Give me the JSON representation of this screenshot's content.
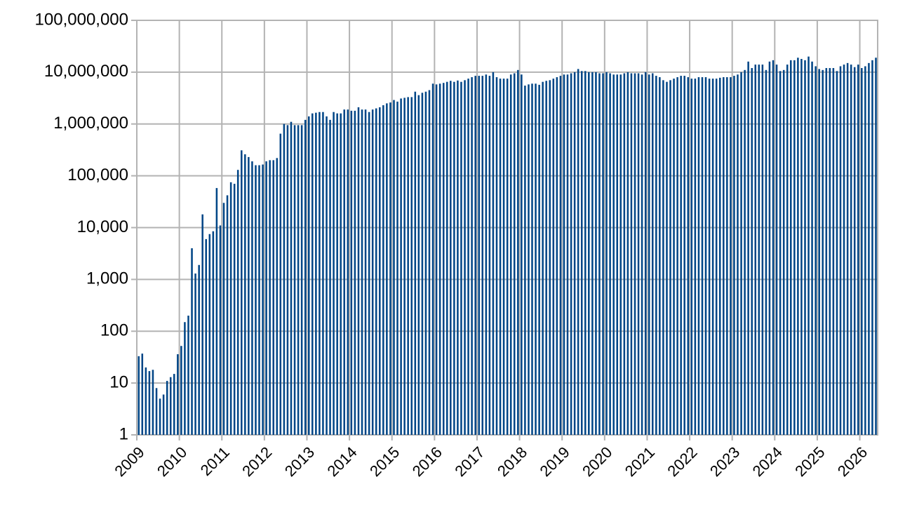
{
  "chart_data": {
    "type": "bar",
    "color": "#004586",
    "log_scale": true,
    "grid": true,
    "xlim": [
      2009,
      2026.42
    ],
    "xticks": [
      2009,
      2010,
      2011,
      2012,
      2013,
      2014,
      2015,
      2016,
      2017,
      2018,
      2019,
      2020,
      2021,
      2022,
      2023,
      2024,
      2025,
      2026
    ],
    "ylim": [
      1,
      100000000
    ],
    "yticks": [
      1,
      10,
      100,
      {
        "value": 1000,
        "label": "1,000"
      },
      {
        "value": 10000,
        "label": "10,000"
      },
      {
        "value": 100000,
        "label": "100,000"
      },
      {
        "value": 1000000,
        "label": "1,000,000"
      },
      {
        "value": 10000000,
        "label": "10,000,000"
      },
      {
        "value": 100000000,
        "label": "100,000,000"
      }
    ],
    "x": [
      2009,
      2009.083,
      2009.167,
      2009.25,
      2009.333,
      2009.417,
      2009.5,
      2009.583,
      2009.667,
      2009.75,
      2009.833,
      2009.917,
      2010,
      2010.083,
      2010.167,
      2010.25,
      2010.333,
      2010.417,
      2010.5,
      2010.583,
      2010.667,
      2010.75,
      2010.833,
      2010.917,
      2011,
      2011.083,
      2011.167,
      2011.25,
      2011.333,
      2011.417,
      2011.5,
      2011.583,
      2011.667,
      2011.75,
      2011.833,
      2011.917,
      2012,
      2012.083,
      2012.167,
      2012.25,
      2012.333,
      2012.417,
      2012.5,
      2012.583,
      2012.667,
      2012.75,
      2012.833,
      2012.917,
      2013,
      2013.083,
      2013.167,
      2013.25,
      2013.333,
      2013.417,
      2013.5,
      2013.583,
      2013.667,
      2013.75,
      2013.833,
      2013.917,
      2014,
      2014.083,
      2014.167,
      2014.25,
      2014.333,
      2014.417,
      2014.5,
      2014.583,
      2014.667,
      2014.75,
      2014.833,
      2014.917,
      2015,
      2015.083,
      2015.167,
      2015.25,
      2015.333,
      2015.417,
      2015.5,
      2015.583,
      2015.667,
      2015.75,
      2015.833,
      2015.917,
      2016,
      2016.083,
      2016.167,
      2016.25,
      2016.333,
      2016.417,
      2016.5,
      2016.583,
      2016.667,
      2016.75,
      2016.833,
      2016.917,
      2017,
      2017.083,
      2017.167,
      2017.25,
      2017.333,
      2017.417,
      2017.5,
      2017.583,
      2017.667,
      2017.75,
      2017.833,
      2017.917,
      2018,
      2018.083,
      2018.167,
      2018.25,
      2018.333,
      2018.417,
      2018.5,
      2018.583,
      2018.667,
      2018.75,
      2018.833,
      2018.917,
      2019,
      2019.083,
      2019.167,
      2019.25,
      2019.333,
      2019.417,
      2019.5,
      2019.583,
      2019.667,
      2019.75,
      2019.833,
      2019.917,
      2020,
      2020.083,
      2020.167,
      2020.25,
      2020.333,
      2020.417,
      2020.5,
      2020.583,
      2020.667,
      2020.75,
      2020.833,
      2020.917,
      2021,
      2021.083,
      2021.167,
      2021.25,
      2021.333,
      2021.417,
      2021.5,
      2021.583,
      2021.667,
      2021.75,
      2021.833,
      2021.917,
      2022,
      2022.083,
      2022.167,
      2022.25,
      2022.333,
      2022.417,
      2022.5,
      2022.583,
      2022.667,
      2022.75,
      2022.833,
      2022.917,
      2023,
      2023.083,
      2023.167,
      2023.25,
      2023.333,
      2023.417,
      2023.5,
      2023.583,
      2023.667,
      2023.75,
      2023.833,
      2023.917,
      2024,
      2024.083,
      2024.167,
      2024.25,
      2024.333,
      2024.417,
      2024.5,
      2024.583,
      2024.667,
      2024.75,
      2024.833,
      2024.917,
      2025,
      2025.083,
      2025.167,
      2025.25,
      2025.333,
      2025.417,
      2025.5,
      2025.583,
      2025.667,
      2025.75,
      2025.833,
      2025.917,
      2026,
      2026.083,
      2026.167,
      2026.25,
      2026.333
    ],
    "values": [
      33,
      37,
      20,
      17,
      18,
      8,
      5,
      6,
      11,
      13,
      15,
      36,
      52,
      150,
      200,
      4000,
      1300,
      1900,
      18000,
      6000,
      7500,
      8500,
      58000,
      11000,
      30000,
      42000,
      75000,
      70000,
      130000,
      310000,
      260000,
      230000,
      190000,
      160000,
      160000,
      165000,
      190000,
      200000,
      200000,
      220000,
      650000,
      1000000,
      950000,
      1100000,
      950000,
      950000,
      950000,
      1200000,
      1400000,
      1600000,
      1650000,
      1700000,
      1700000,
      1400000,
      1200000,
      1700000,
      1600000,
      1600000,
      1900000,
      1900000,
      1800000,
      1800000,
      2100000,
      1900000,
      1900000,
      1700000,
      1900000,
      2000000,
      2100000,
      2300000,
      2500000,
      2600000,
      2900000,
      2700000,
      3100000,
      3200000,
      3300000,
      3300000,
      4200000,
      3600000,
      4000000,
      4200000,
      4500000,
      6000000,
      5800000,
      6000000,
      6200000,
      6500000,
      6800000,
      6500000,
      6900000,
      6500000,
      7000000,
      7500000,
      8000000,
      8500000,
      8500000,
      8500000,
      9000000,
      8500000,
      10000000,
      8000000,
      7500000,
      7500000,
      7500000,
      9000000,
      9500000,
      11000000,
      9000000,
      5500000,
      5800000,
      6000000,
      6000000,
      5700000,
      6500000,
      6800000,
      7000000,
      7500000,
      8000000,
      8500000,
      9000000,
      9000000,
      9500000,
      10000000,
      11500000,
      10500000,
      10500000,
      10000000,
      10000000,
      10000000,
      9500000,
      9500000,
      10000000,
      9500000,
      9000000,
      9000000,
      9000000,
      9500000,
      10000000,
      9500000,
      9500000,
      9500000,
      9000000,
      10000000,
      9000000,
      9500000,
      8500000,
      8000000,
      7000000,
      6500000,
      7000000,
      7500000,
      8000000,
      8500000,
      8500000,
      8000000,
      7500000,
      7500000,
      8000000,
      8000000,
      8000000,
      7500000,
      7500000,
      7500000,
      7800000,
      8000000,
      8000000,
      8000000,
      8500000,
      9000000,
      10000000,
      11000000,
      16000000,
      12000000,
      14000000,
      14000000,
      14000000,
      11000000,
      16000000,
      17000000,
      14000000,
      10500000,
      11000000,
      14000000,
      17000000,
      17000000,
      19000000,
      18000000,
      17000000,
      20000000,
      16000000,
      13000000,
      11500000,
      11000000,
      12000000,
      12000000,
      12000000,
      10500000,
      13000000,
      14000000,
      15000000,
      14000000,
      12500000,
      14000000,
      12000000,
      13000000,
      15000000,
      17000000,
      19000000
    ]
  }
}
